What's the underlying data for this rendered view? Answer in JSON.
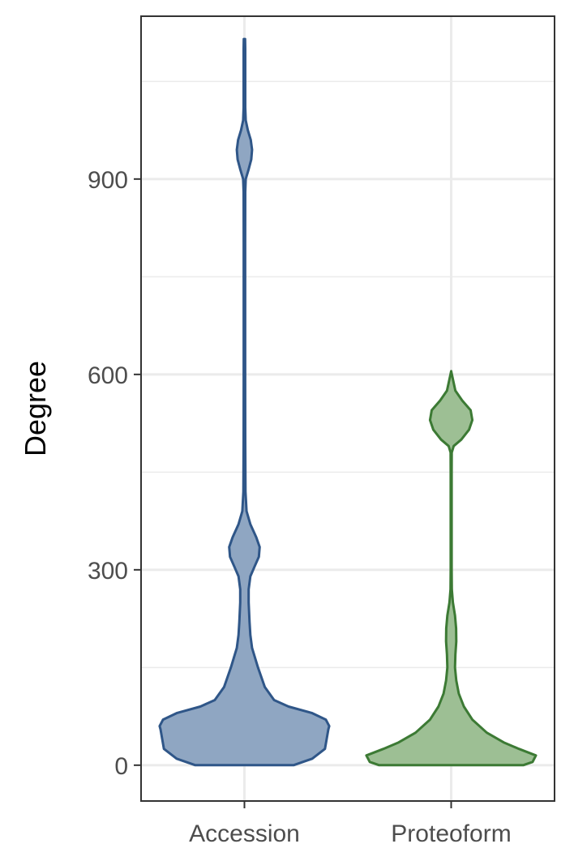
{
  "chart_data": {
    "type": "violin",
    "title": "",
    "xlabel": "",
    "ylabel": "Degree",
    "ylim": [
      -55,
      1150
    ],
    "y_ticks": [
      0,
      300,
      600,
      900
    ],
    "y_minor_ticks": [
      150,
      450,
      750,
      1050
    ],
    "categories": [
      "Accession",
      "Proteoform"
    ],
    "grid": true,
    "series": [
      {
        "category": "Accession",
        "color": "#2f5688",
        "fill": "#8fa6c2",
        "min": 0,
        "max": 1115,
        "density_profile": [
          [
            0,
            0.58
          ],
          [
            10,
            0.8
          ],
          [
            25,
            0.95
          ],
          [
            40,
            0.97
          ],
          [
            55,
            0.99
          ],
          [
            60,
            1.0
          ],
          [
            70,
            0.96
          ],
          [
            80,
            0.8
          ],
          [
            90,
            0.52
          ],
          [
            100,
            0.35
          ],
          [
            120,
            0.24
          ],
          [
            150,
            0.16
          ],
          [
            180,
            0.09
          ],
          [
            200,
            0.07
          ],
          [
            220,
            0.06
          ],
          [
            250,
            0.05
          ],
          [
            270,
            0.05
          ],
          [
            290,
            0.07
          ],
          [
            305,
            0.12
          ],
          [
            320,
            0.17
          ],
          [
            335,
            0.18
          ],
          [
            350,
            0.14
          ],
          [
            370,
            0.07
          ],
          [
            390,
            0.025
          ],
          [
            420,
            0.012
          ],
          [
            500,
            0.01
          ],
          [
            600,
            0.009
          ],
          [
            700,
            0.009
          ],
          [
            800,
            0.009
          ],
          [
            880,
            0.01
          ],
          [
            900,
            0.015
          ],
          [
            915,
            0.05
          ],
          [
            930,
            0.08
          ],
          [
            945,
            0.09
          ],
          [
            960,
            0.075
          ],
          [
            975,
            0.04
          ],
          [
            990,
            0.015
          ],
          [
            1010,
            0.01
          ],
          [
            1050,
            0.01
          ],
          [
            1100,
            0.01
          ],
          [
            1115,
            0.008
          ]
        ]
      },
      {
        "category": "Proteoform",
        "color": "#3c7a34",
        "fill": "#9dbf94",
        "min": 0,
        "max": 605,
        "density_profile": [
          [
            0,
            0.85
          ],
          [
            5,
            0.96
          ],
          [
            15,
            1.0
          ],
          [
            25,
            0.8
          ],
          [
            35,
            0.62
          ],
          [
            50,
            0.42
          ],
          [
            70,
            0.25
          ],
          [
            90,
            0.15
          ],
          [
            110,
            0.09
          ],
          [
            130,
            0.06
          ],
          [
            150,
            0.045
          ],
          [
            170,
            0.05
          ],
          [
            190,
            0.06
          ],
          [
            210,
            0.058
          ],
          [
            230,
            0.045
          ],
          [
            250,
            0.02
          ],
          [
            270,
            0.008
          ],
          [
            300,
            0.006
          ],
          [
            350,
            0.006
          ],
          [
            400,
            0.006
          ],
          [
            450,
            0.006
          ],
          [
            480,
            0.007
          ],
          [
            490,
            0.03
          ],
          [
            500,
            0.12
          ],
          [
            515,
            0.21
          ],
          [
            530,
            0.25
          ],
          [
            545,
            0.23
          ],
          [
            560,
            0.13
          ],
          [
            575,
            0.05
          ],
          [
            590,
            0.025
          ],
          [
            605,
            0.0
          ]
        ]
      }
    ]
  }
}
